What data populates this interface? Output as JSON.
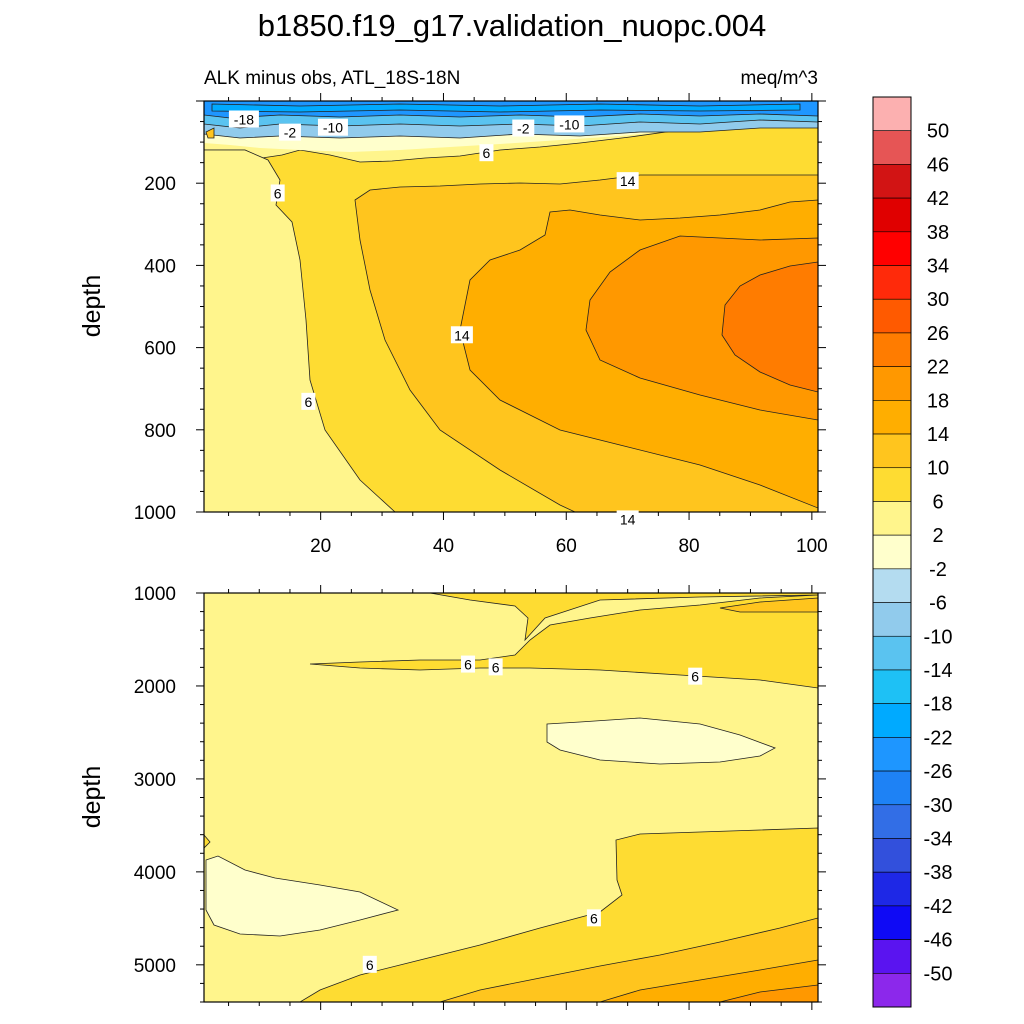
{
  "figure": {
    "title": "b1850.f19_g17.validation_nuopc.004",
    "subtitle_left": "ALK minus obs, ATL_18S-18N",
    "subtitle_right": "meq/m^3"
  },
  "colorbar": {
    "labels": [
      "50",
      "46",
      "42",
      "38",
      "34",
      "30",
      "26",
      "22",
      "18",
      "14",
      "10",
      "6",
      "2",
      "-2",
      "-6",
      "-10",
      "-14",
      "-18",
      "-22",
      "-26",
      "-30",
      "-34",
      "-38",
      "-42",
      "-46",
      "-50"
    ],
    "colors": [
      "#fcb0b0",
      "#e65555",
      "#d21414",
      "#e00000",
      "#ff0000",
      "#ff2a0a",
      "#ff5a00",
      "#ff7c00",
      "#ff9800",
      "#ffae00",
      "#ffc51e",
      "#fedc32",
      "#fff58c",
      "#ffffcc",
      "#b4dcf0",
      "#91cbec",
      "#5ac3f0",
      "#1ec1f5",
      "#00aaff",
      "#1e96ff",
      "#1e82f5",
      "#326ee6",
      "#3250dc",
      "#1e28e6",
      "#0f0af5",
      "#5a14f0",
      "#8c28eb"
    ]
  },
  "chart_data": [
    {
      "type": "contour",
      "panel": "upper",
      "xlabel": "",
      "ylabel": "depth",
      "xlim": [
        1,
        101
      ],
      "ylim": [
        1000,
        0
      ],
      "xticks": [
        20,
        40,
        60,
        80,
        100
      ],
      "yticks": [
        200,
        400,
        600,
        800,
        1000
      ],
      "contour_labels": [
        {
          "text": "-18",
          "x": 7.5,
          "y": 45
        },
        {
          "text": "-2",
          "x": 15,
          "y": 77
        },
        {
          "text": "-10",
          "x": 22,
          "y": 65
        },
        {
          "text": "-2",
          "x": 53,
          "y": 67
        },
        {
          "text": "-10",
          "x": 60.5,
          "y": 57
        },
        {
          "text": "6",
          "x": 47,
          "y": 127
        },
        {
          "text": "6",
          "x": 13,
          "y": 225
        },
        {
          "text": "14",
          "x": 70,
          "y": 195
        },
        {
          "text": "14",
          "x": 43,
          "y": 570
        },
        {
          "text": "6",
          "x": 18,
          "y": 732
        },
        {
          "text": "14",
          "x": 70,
          "y": 1018
        }
      ]
    },
    {
      "type": "contour",
      "panel": "lower",
      "xlabel": "",
      "ylabel": "depth",
      "xlim": [
        1,
        101
      ],
      "ylim": [
        5400,
        1000
      ],
      "xticks": [
        20,
        40,
        60,
        80,
        100
      ],
      "yticks": [
        1000,
        2000,
        3000,
        4000,
        5000
      ],
      "contour_labels": [
        {
          "text": "6",
          "x": 44,
          "y": 1770
        },
        {
          "text": "6",
          "x": 48.5,
          "y": 1800
        },
        {
          "text": "6",
          "x": 81,
          "y": 1900
        },
        {
          "text": "6",
          "x": 64.5,
          "y": 4500
        },
        {
          "text": "6",
          "x": 28,
          "y": 5000
        }
      ]
    }
  ]
}
